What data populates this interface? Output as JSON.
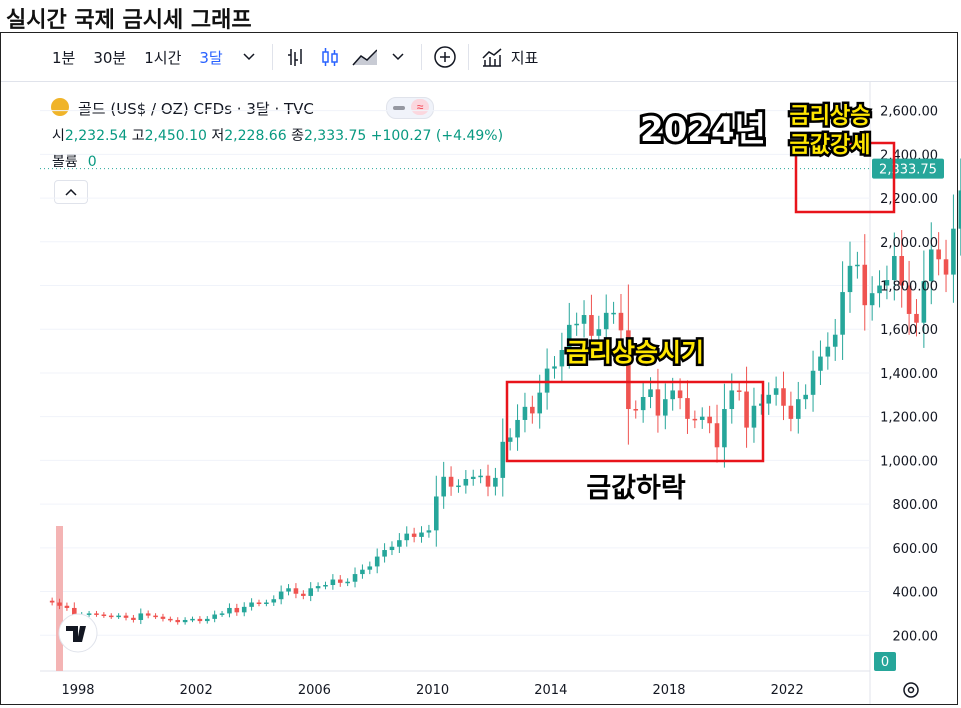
{
  "page_title": "실시간 국제 금시세 그래프",
  "toolbar": {
    "intervals": [
      "1분",
      "30분",
      "1시간",
      "3달"
    ],
    "active_interval": "3달",
    "indicators_label": "지표"
  },
  "symbol": {
    "title": "골드 (US$ / OZ) CFDs · 3달 · TVC",
    "open_label": "시",
    "open": "2,232.54",
    "high_label": "고",
    "high": "2,450.10",
    "low_label": "저",
    "low": "2,228.66",
    "close_label": "종",
    "close": "2,333.75",
    "change": "+100.27 (+4.49%)",
    "volume_label": "볼륨",
    "volume": "0"
  },
  "price_badge": "2,333.75",
  "volume_badge": "0",
  "colors": {
    "up": "#26a69a",
    "down": "#ef5350",
    "accent": "#2962ff",
    "box": "#e8141b"
  },
  "annotations": {
    "year_2024": "2024년",
    "top_line1": "금리상승",
    "top_line2": "금값강세",
    "middle_top": "금리상승시기",
    "middle_bottom": "금값하락"
  },
  "chart_data": {
    "type": "candlestick",
    "title": "골드 (US$ / OZ) CFDs · 3달 · TVC",
    "interval": "3 months",
    "ylim": [
      0,
      2650
    ],
    "y_ticks": [
      "200.00",
      "400.00",
      "600.00",
      "800.00",
      "1,000.00",
      "1,200.00",
      "1,400.00",
      "1,600.00",
      "1,800.00",
      "2,000.00",
      "2,200.00",
      "2,400.00",
      "2,600.00"
    ],
    "x_ticks": [
      "1998",
      "2002",
      "2006",
      "2010",
      "2014",
      "2018",
      "2022"
    ],
    "x_start": "1997-01",
    "closes": [
      350,
      335,
      325,
      290,
      295,
      300,
      295,
      290,
      285,
      290,
      280,
      270,
      300,
      290,
      285,
      275,
      270,
      260,
      270,
      275,
      265,
      275,
      295,
      300,
      325,
      305,
      330,
      350,
      345,
      350,
      365,
      400,
      415,
      390,
      380,
      415,
      425,
      430,
      455,
      440,
      445,
      480,
      500,
      515,
      560,
      590,
      605,
      635,
      665,
      650,
      670,
      680,
      835,
      925,
      880,
      885,
      915,
      925,
      930,
      880,
      920,
      1085,
      1105,
      1185,
      1245,
      1215,
      1310,
      1420,
      1430,
      1505,
      1620,
      1625,
      1665,
      1570,
      1600,
      1675,
      1675,
      1595,
      1235,
      1230,
      1290,
      1325,
      1205,
      1280,
      1320,
      1285,
      1190,
      1185,
      1200,
      1170,
      1060,
      1235,
      1320,
      1315,
      1150,
      1250,
      1260,
      1300,
      1330,
      1250,
      1190,
      1280,
      1300,
      1410,
      1475,
      1520,
      1575,
      1770,
      1890,
      1895,
      1710,
      1765,
      1800,
      1825,
      1935,
      1800,
      1670,
      1630,
      1820,
      1965,
      1920,
      1850,
      2060,
      2235,
      2335
    ]
  }
}
